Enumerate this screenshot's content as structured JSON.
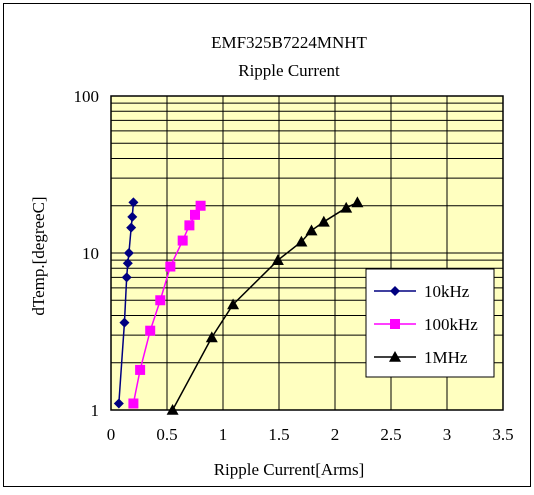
{
  "chart_data": {
    "type": "line",
    "title": "EMF325B7224MNHT",
    "subtitle": "Ripple Current",
    "xlabel": "Ripple Current[Arms]",
    "ylabel": "dTemp.[degreeC]",
    "xlim": [
      0,
      3.5
    ],
    "ylim": [
      1,
      100
    ],
    "y_scale": "log",
    "x_ticks": [
      "0",
      "0.5",
      "1",
      "1.5",
      "2",
      "2.5",
      "3",
      "3.5"
    ],
    "y_ticks": [
      "1",
      "10",
      "100"
    ],
    "grid": true,
    "legend_position": "right",
    "plot_background": "#ffffc0",
    "series": [
      {
        "name": "10kHz",
        "color": "#000080",
        "marker": "diamond",
        "points": [
          [
            0.07,
            1.1
          ],
          [
            0.12,
            3.6
          ],
          [
            0.14,
            7.0
          ],
          [
            0.15,
            8.6
          ],
          [
            0.16,
            10.0
          ],
          [
            0.18,
            14.5
          ],
          [
            0.19,
            17.0
          ],
          [
            0.2,
            21.0
          ]
        ]
      },
      {
        "name": "100kHz",
        "color": "#ff00ff",
        "marker": "square",
        "points": [
          [
            0.2,
            1.1
          ],
          [
            0.26,
            1.8
          ],
          [
            0.35,
            3.2
          ],
          [
            0.44,
            5.0
          ],
          [
            0.53,
            8.2
          ],
          [
            0.64,
            12.0
          ],
          [
            0.7,
            15.0
          ],
          [
            0.75,
            17.5
          ],
          [
            0.8,
            20.0
          ]
        ]
      },
      {
        "name": "1MHz",
        "color": "#000000",
        "marker": "triangle",
        "points": [
          [
            0.55,
            1.0
          ],
          [
            0.9,
            2.9
          ],
          [
            1.09,
            4.7
          ],
          [
            1.49,
            9.0
          ],
          [
            1.7,
            11.8
          ],
          [
            1.79,
            13.9
          ],
          [
            1.9,
            15.8
          ],
          [
            2.1,
            19.4
          ],
          [
            2.2,
            21.0
          ]
        ]
      }
    ]
  }
}
